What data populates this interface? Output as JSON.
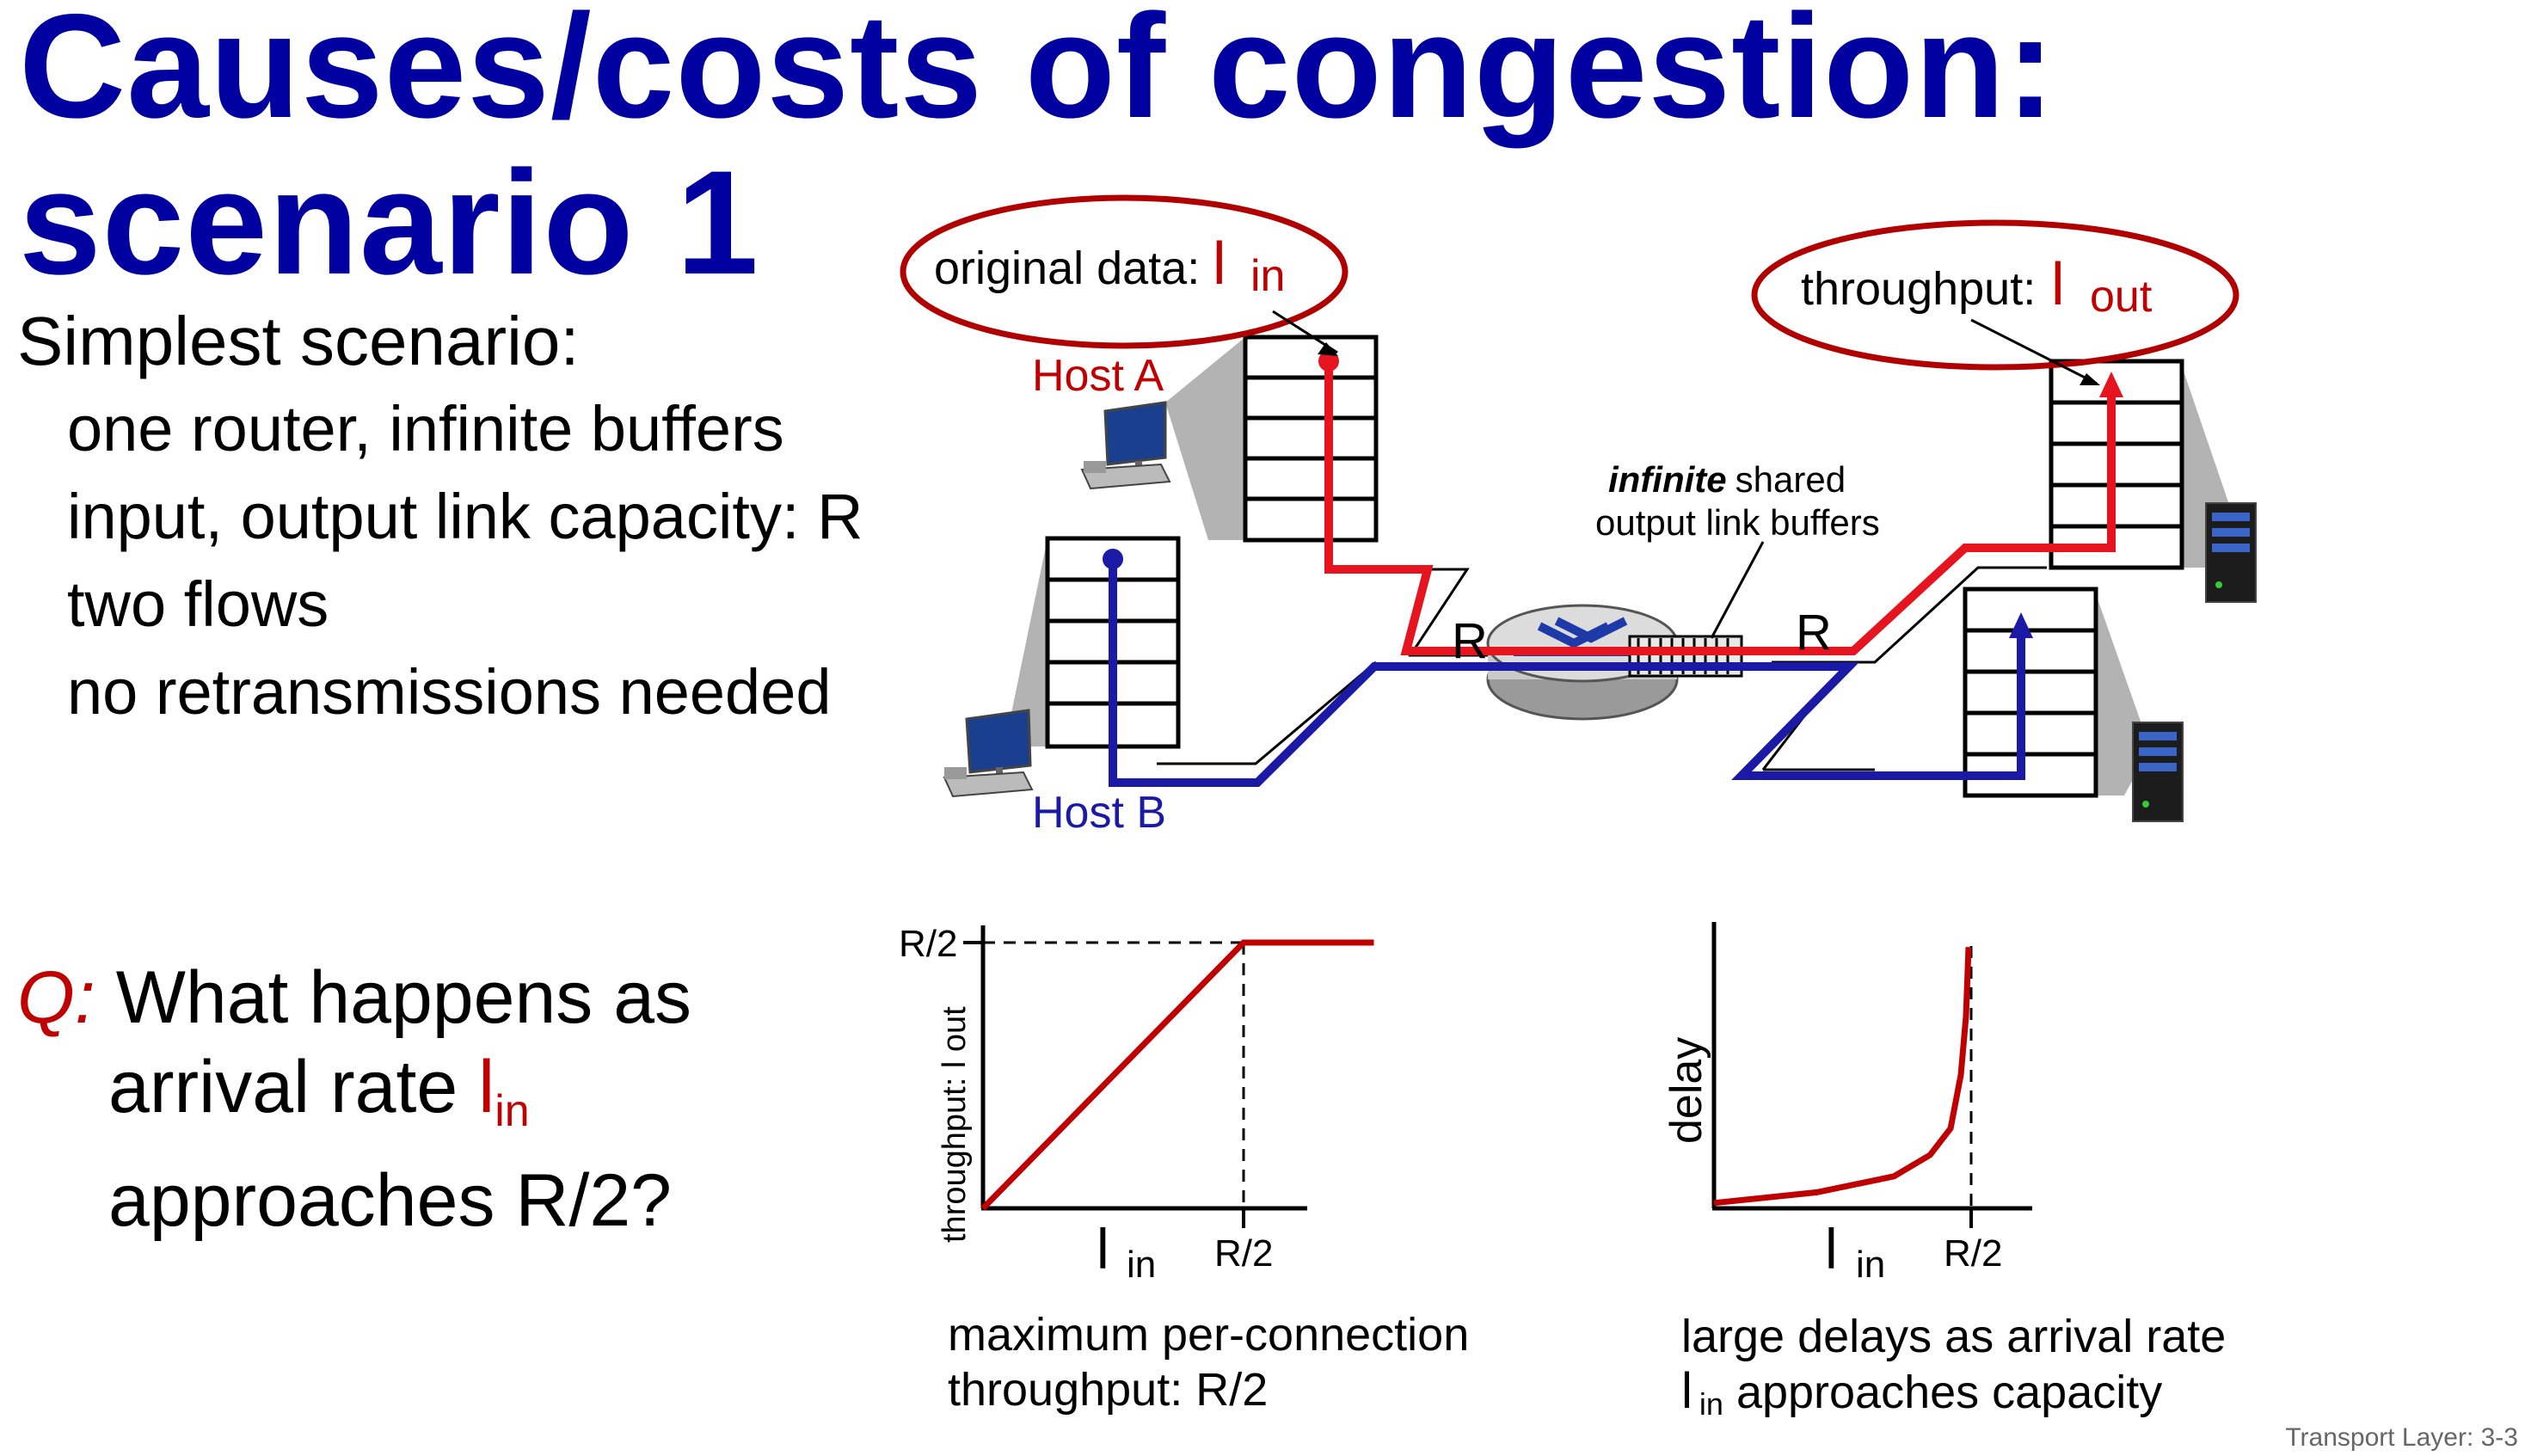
{
  "title": "Causes/costs of congestion: scenario 1",
  "bullets": {
    "heading": "Simplest scenario:",
    "items": [
      "one router, infinite buffers",
      "input, output link capacity: R",
      "two flows",
      "no retransmissions needed"
    ]
  },
  "question": {
    "q": "Q:",
    "line1": "What happens as",
    "line2_prefix": "arrival rate",
    "lambda": "l",
    "lambda_sub": "in",
    "line3": "approaches R/2?"
  },
  "diagram": {
    "original_data_label": "original data:",
    "lambda": "l",
    "in_sub": "in",
    "throughput_label": "throughput:",
    "out_sub": "out",
    "host_a": "Host A",
    "host_b": "Host B",
    "infinite": "infinite",
    "shared": "shared",
    "buffers_line2": "output link buffers",
    "r_left": "R",
    "r_right": "R"
  },
  "chart_data": [
    {
      "type": "line",
      "title": "",
      "xlabel": "l in",
      "ylabel": "throughput: l out",
      "x_ticks": [
        "R/2"
      ],
      "y_ticks": [
        "R/2"
      ],
      "series": [
        {
          "name": "throughput",
          "x": [
            0,
            0.5,
            0.75
          ],
          "y": [
            0,
            0.5,
            0.5
          ]
        }
      ],
      "xlim": [
        0,
        0.75
      ],
      "ylim": [
        0,
        0.5
      ],
      "caption_line1": "maximum per-connection",
      "caption_line2": "throughput: R/2"
    },
    {
      "type": "line",
      "title": "",
      "xlabel": "l in",
      "ylabel": "delay",
      "x_ticks": [
        "R/2"
      ],
      "series": [
        {
          "name": "delay",
          "x": [
            0,
            0.2,
            0.35,
            0.42,
            0.46,
            0.48,
            0.49,
            0.495
          ],
          "y": [
            0.02,
            0.06,
            0.12,
            0.2,
            0.3,
            0.5,
            0.72,
            0.98
          ]
        }
      ],
      "xlim": [
        0,
        0.6
      ],
      "ylim": [
        0,
        1
      ],
      "caption_line1": "large delays as arrival rate",
      "caption_lambda": "l",
      "caption_sub": "in",
      "caption_line2": "approaches capacity"
    }
  ],
  "colors": {
    "title": "#0000a0",
    "red": "#c00000",
    "blue": "#1a1aa6"
  },
  "footer": "Transport Layer: 3-3"
}
